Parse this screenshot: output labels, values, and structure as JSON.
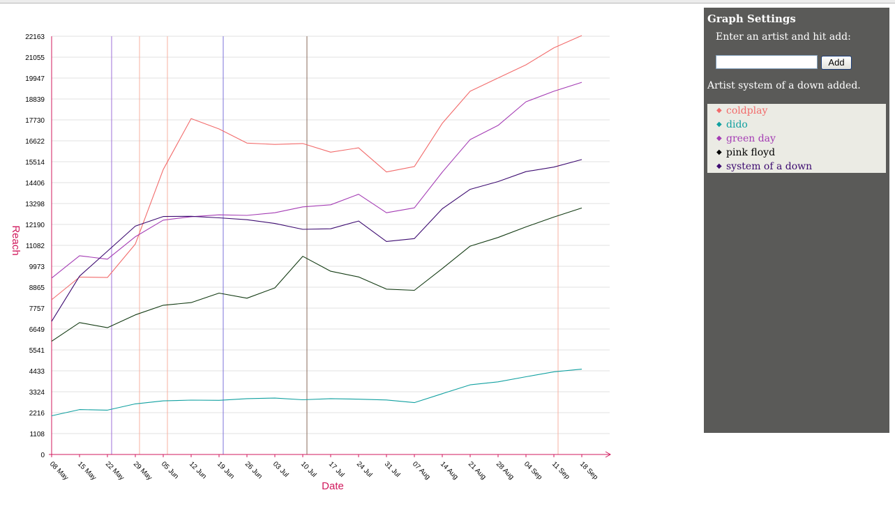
{
  "chart_data": {
    "type": "line",
    "xlabel": "Date",
    "ylabel": "Reach",
    "ylim": [
      0,
      22163
    ],
    "y_ticks": [
      "0",
      "1108",
      "2216",
      "3324",
      "4433",
      "5541",
      "6649",
      "7757",
      "8865",
      "9973",
      "11082",
      "12190",
      "13298",
      "14406",
      "15514",
      "16622",
      "17730",
      "18839",
      "19947",
      "21055",
      "22163"
    ],
    "categories": [
      "08 May",
      "15 May",
      "22 May",
      "29 May",
      "05 Jun",
      "12 Jun",
      "19 Jun",
      "26 Jun",
      "03 Jul",
      "10 Jul",
      "17 Jul",
      "24 Jul",
      "31 Jul",
      "07 Aug",
      "14 Aug",
      "21 Aug",
      "28 Aug",
      "04 Sep",
      "11 Sep",
      "18 Sep"
    ],
    "grid": true,
    "series": [
      {
        "name": "coldplay",
        "color": "#f26b6b",
        "values": [
          8200,
          9400,
          9380,
          11150,
          15100,
          17800,
          17250,
          16500,
          16430,
          16480,
          16020,
          16250,
          14970,
          15260,
          17550,
          19250,
          19950,
          20650,
          21550,
          22200
        ]
      },
      {
        "name": "dido",
        "color": "#10a0a0",
        "values": [
          2050,
          2380,
          2350,
          2680,
          2840,
          2880,
          2870,
          2960,
          2990,
          2900,
          2960,
          2930,
          2890,
          2750,
          3220,
          3690,
          3850,
          4120,
          4380,
          4520
        ]
      },
      {
        "name": "green day",
        "color": "#a43cb4",
        "values": [
          9350,
          10530,
          10350,
          11540,
          12420,
          12600,
          12700,
          12670,
          12810,
          13120,
          13230,
          13790,
          12810,
          13070,
          14960,
          16690,
          17440,
          18690,
          19250,
          19720
        ]
      },
      {
        "name": "pink floyd",
        "color": "#123a12",
        "values": [
          6000,
          6990,
          6720,
          7400,
          7910,
          8050,
          8550,
          8280,
          8830,
          10500,
          9710,
          9410,
          8760,
          8700,
          9850,
          11040,
          11500,
          12060,
          12580,
          13060
        ]
      },
      {
        "name": "system of a down",
        "color": "#3c0a70",
        "values": [
          7050,
          9450,
          10770,
          12100,
          12610,
          12620,
          12540,
          12440,
          12240,
          11930,
          11960,
          12370,
          11290,
          11440,
          13020,
          14050,
          14460,
          14990,
          15230,
          15630
        ]
      }
    ],
    "markers": [
      {
        "x": "22 May",
        "color": "#9e6fd8"
      },
      {
        "x": "29 May",
        "color": "#f7b0a0"
      },
      {
        "x": "05 Jun",
        "color": "#f7b0a0"
      },
      {
        "x": "19 Jun",
        "color": "#7b70d8"
      },
      {
        "x": "10 Jul",
        "color": "#8a6a5a"
      },
      {
        "x": "11 Sep",
        "color": "#f7b0a0"
      }
    ],
    "axis_color": "#d0185c",
    "grid_color": "#e2e2e2"
  },
  "panel": {
    "title": "Graph Settings",
    "prompt": "Enter an artist and hit add:",
    "input_value": "",
    "add_label": "Add",
    "status": "Artist system of a down added.",
    "legend": [
      {
        "label": "coldplay",
        "color": "#f26b6b"
      },
      {
        "label": "dido",
        "color": "#10a0a0"
      },
      {
        "label": "green day",
        "color": "#a43cb4"
      },
      {
        "label": "pink floyd",
        "color": "#000000"
      },
      {
        "label": "system of a down",
        "color": "#3c0a70"
      }
    ]
  }
}
